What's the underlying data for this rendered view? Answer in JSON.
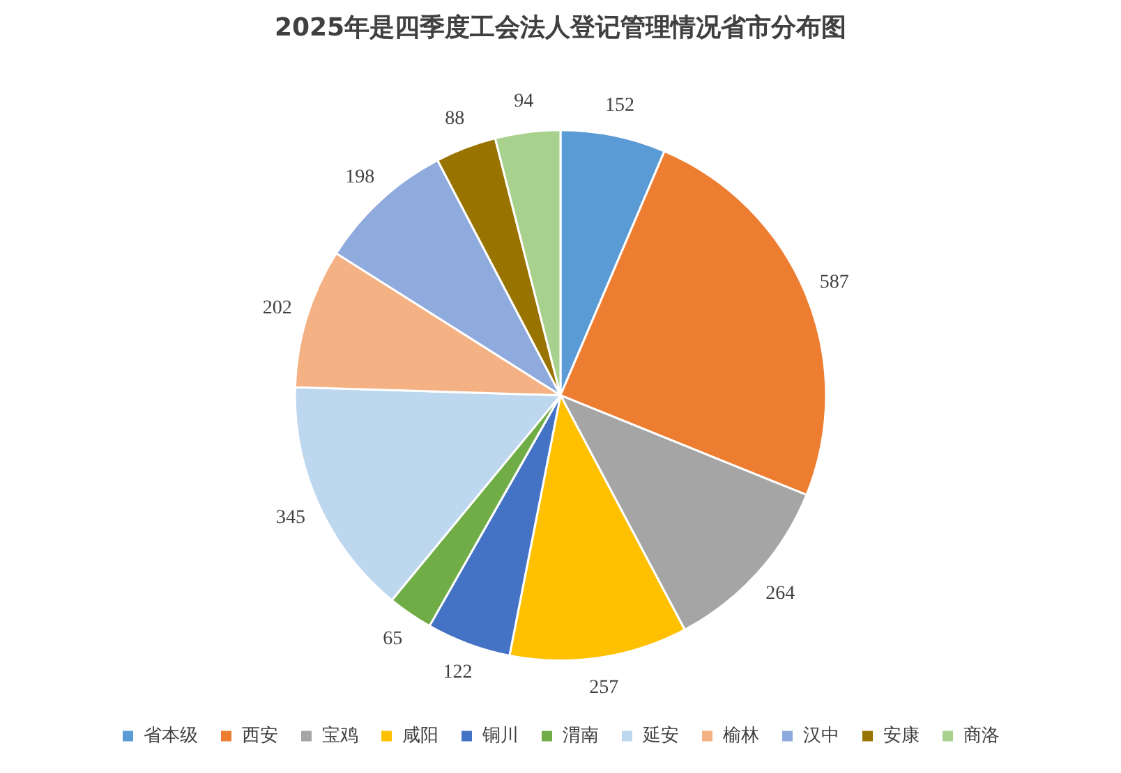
{
  "chart_data": {
    "type": "pie",
    "title": "2025年是四季度工会法人登记管理情况省市分布图",
    "categories": [
      "省本级",
      "西安",
      "宝鸡",
      "咸阳",
      "铜川",
      "渭南",
      "延安",
      "榆林",
      "汉中",
      "安康",
      "商洛"
    ],
    "values": [
      152,
      587,
      264,
      257,
      122,
      65,
      345,
      202,
      198,
      88,
      94
    ],
    "colors": [
      "#5b9bd5",
      "#ed7d31",
      "#a5a5a5",
      "#ffc000",
      "#4472c4",
      "#70ad47",
      "#bdd7ee",
      "#f4b183",
      "#8faadc",
      "#997300",
      "#a9d18e"
    ],
    "data_labels": true,
    "legend": "bottom"
  }
}
